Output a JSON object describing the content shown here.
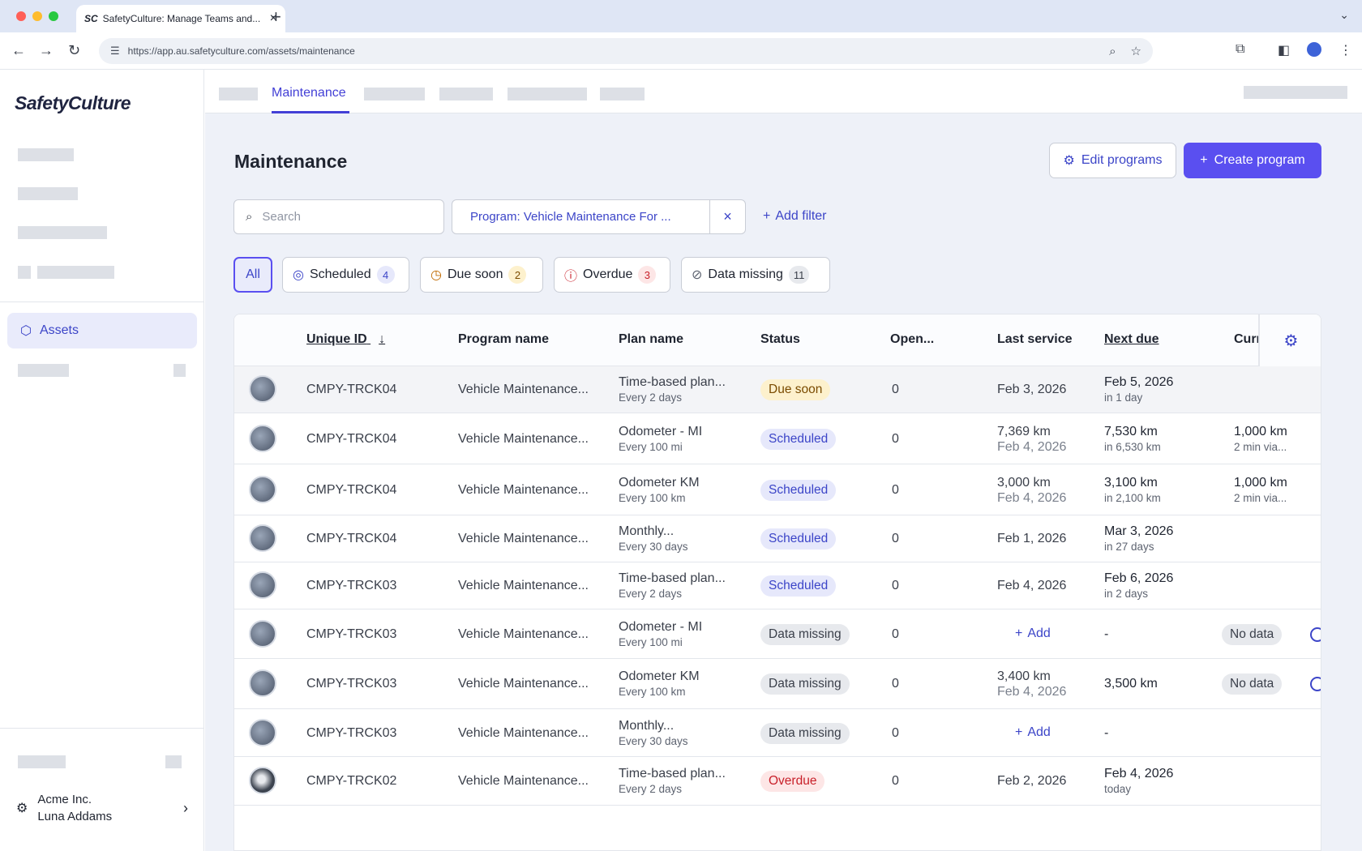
{
  "browser": {
    "tab_title": "SafetyCulture: Manage Teams and...",
    "favicon": "SC",
    "url": "https://app.au.safetyculture.com/assets/maintenance"
  },
  "sidebar": {
    "logo": "SafetyCulture",
    "active_item": "Assets",
    "org_name": "Acme Inc.",
    "user_name": "Luna Addams"
  },
  "topnav": {
    "active_tab": "Maintenance"
  },
  "page": {
    "title": "Maintenance",
    "edit_programs": "Edit programs",
    "create_program": "Create program",
    "search_placeholder": "Search",
    "filter_chip": "Program: Vehicle Maintenance For ...",
    "add_filter": "Add filter"
  },
  "status_tabs": [
    {
      "label": "All",
      "count": ""
    },
    {
      "label": "Scheduled",
      "count": "4"
    },
    {
      "label": "Due soon",
      "count": "2"
    },
    {
      "label": "Overdue",
      "count": "3"
    },
    {
      "label": "Data missing",
      "count": "11"
    }
  ],
  "colors": {
    "accent": "#5a4ff0",
    "link": "#3c45c8",
    "due_soon": "#fdf1cd",
    "overdue": "#c8202a"
  },
  "table": {
    "headers": {
      "unique_id": "Unique ID",
      "program": "Program name",
      "plan": "Plan name",
      "status": "Status",
      "open": "Open...",
      "last_service": "Last service",
      "next_due": "Next due",
      "current": "Curr"
    },
    "rows": [
      {
        "id": "CMPY-TRCK04",
        "program": "Vehicle Maintenance...",
        "plan": "Time-based plan...",
        "plan_sub": "Every 2 days",
        "status": "Due soon",
        "open": "0",
        "last": "Feb 3, 2026",
        "last_sub": "",
        "next": "Feb 5, 2026",
        "next_sub": "in 1 day",
        "cur": "",
        "cur_sub": ""
      },
      {
        "id": "CMPY-TRCK04",
        "program": "Vehicle Maintenance...",
        "plan": "Odometer - MI",
        "plan_sub": "Every 100 mi",
        "status": "Scheduled",
        "open": "0",
        "last": "7,369 km",
        "last_sub": "Feb 4, 2026",
        "next": "7,530 km",
        "next_sub": "in 6,530 km",
        "cur": "1,000 km",
        "cur_sub": "2 min via..."
      },
      {
        "id": "CMPY-TRCK04",
        "program": "Vehicle Maintenance...",
        "plan": "Odometer KM",
        "plan_sub": "Every 100 km",
        "status": "Scheduled",
        "open": "0",
        "last": "3,000 km",
        "last_sub": "Feb 4, 2026",
        "next": "3,100 km",
        "next_sub": "in 2,100 km",
        "cur": "1,000 km",
        "cur_sub": "2 min via..."
      },
      {
        "id": "CMPY-TRCK04",
        "program": "Vehicle Maintenance...",
        "plan": "Monthly...",
        "plan_sub": "Every 30 days",
        "status": "Scheduled",
        "open": "0",
        "last": "Feb 1, 2026",
        "last_sub": "",
        "next": "Mar 3, 2026",
        "next_sub": "in 27 days",
        "cur": "",
        "cur_sub": ""
      },
      {
        "id": "CMPY-TRCK03",
        "program": "Vehicle Maintenance...",
        "plan": "Time-based plan...",
        "plan_sub": "Every 2 days",
        "status": "Scheduled",
        "open": "0",
        "last": "Feb 4, 2026",
        "last_sub": "",
        "next": "Feb 6, 2026",
        "next_sub": "in 2 days",
        "cur": "",
        "cur_sub": ""
      },
      {
        "id": "CMPY-TRCK03",
        "program": "Vehicle Maintenance...",
        "plan": "Odometer - MI",
        "plan_sub": "Every 100 mi",
        "status": "Data missing",
        "open": "0",
        "last": "Add",
        "last_sub": "",
        "next": "-",
        "next_sub": "",
        "cur": "No data",
        "cur_sub": ""
      },
      {
        "id": "CMPY-TRCK03",
        "program": "Vehicle Maintenance...",
        "plan": "Odometer KM",
        "plan_sub": "Every 100 km",
        "status": "Data missing",
        "open": "0",
        "last": "3,400 km",
        "last_sub": "Feb 4, 2026",
        "next": "3,500 km",
        "next_sub": "",
        "cur": "No data",
        "cur_sub": ""
      },
      {
        "id": "CMPY-TRCK03",
        "program": "Vehicle Maintenance...",
        "plan": "Monthly...",
        "plan_sub": "Every 30 days",
        "status": "Data missing",
        "open": "0",
        "last": "Add",
        "last_sub": "",
        "next": "-",
        "next_sub": "",
        "cur": "",
        "cur_sub": ""
      },
      {
        "id": "CMPY-TRCK02",
        "program": "Vehicle Maintenance...",
        "plan": "Time-based plan...",
        "plan_sub": "Every 2 days",
        "status": "Overdue",
        "open": "0",
        "last": "Feb 2, 2026",
        "last_sub": "",
        "next": "Feb 4, 2026",
        "next_sub": "today",
        "cur": "",
        "cur_sub": ""
      }
    ]
  }
}
